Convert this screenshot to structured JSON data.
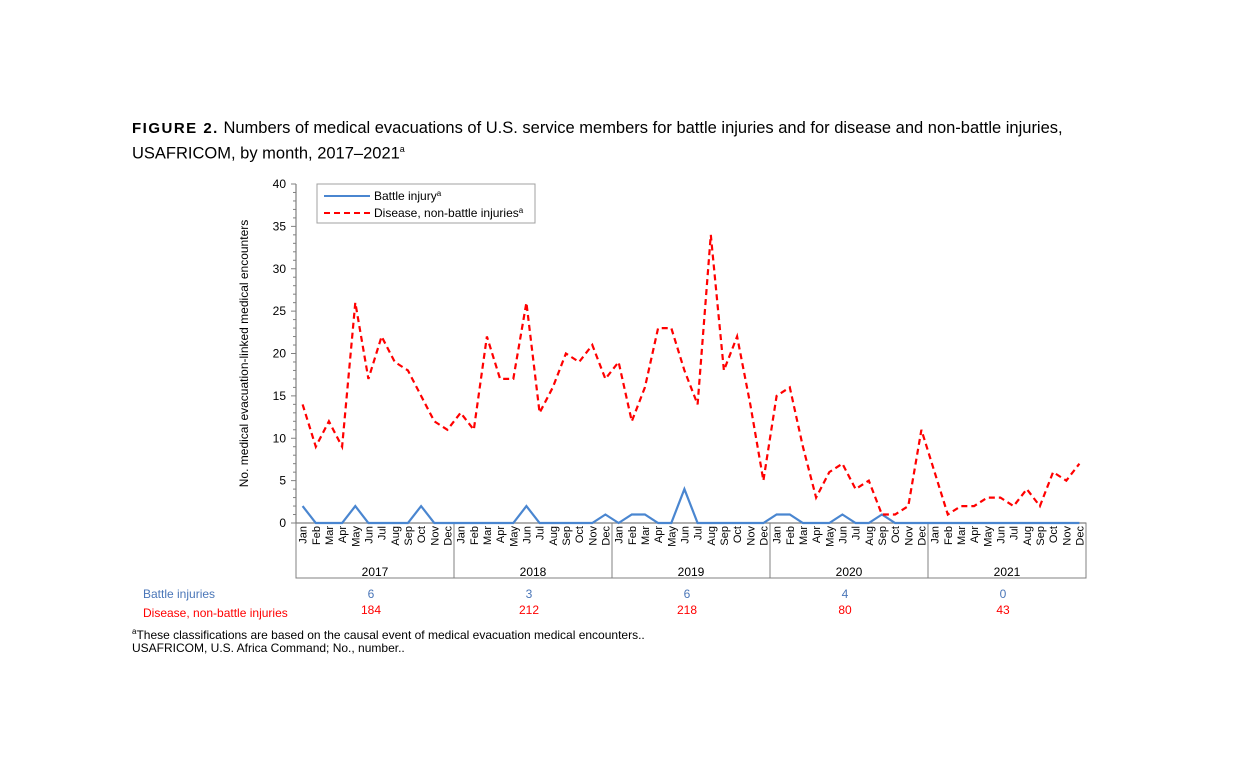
{
  "title": {
    "figure_label": "FIGURE 2.",
    "text": "Numbers of medical evacuations of U.S. service members for battle injuries and for disease and non-battle injuries, USAFRICOM, by month, 2017–2021",
    "superscript": "a"
  },
  "chart_data": {
    "type": "line",
    "ylabel": "No. medical evacuation-linked medical encounters",
    "ylim": [
      0,
      40
    ],
    "yticks": [
      0,
      5,
      10,
      15,
      20,
      25,
      30,
      35,
      40
    ],
    "months": [
      "Jan",
      "Feb",
      "Mar",
      "Apr",
      "May",
      "Jun",
      "Jul",
      "Aug",
      "Sep",
      "Oct",
      "Nov",
      "Dec"
    ],
    "years": [
      "2017",
      "2018",
      "2019",
      "2020",
      "2021"
    ],
    "legend_position": "top-left",
    "series": [
      {
        "name": "Battle injury",
        "superscript": "a",
        "color": "#4a86d0",
        "style": "solid",
        "values": [
          2,
          0,
          0,
          0,
          2,
          0,
          0,
          0,
          0,
          2,
          0,
          0,
          0,
          0,
          0,
          0,
          0,
          2,
          0,
          0,
          0,
          0,
          0,
          1,
          0,
          1,
          1,
          0,
          0,
          4,
          0,
          0,
          0,
          0,
          0,
          0,
          1,
          1,
          0,
          0,
          0,
          1,
          0,
          0,
          1,
          0,
          0,
          0,
          0,
          0,
          0,
          0,
          0,
          0,
          0,
          0,
          0,
          0,
          0,
          0
        ]
      },
      {
        "name": "Disease, non-battle injuries",
        "superscript": "a",
        "color": "#ff0000",
        "style": "dashed",
        "values": [
          14,
          9,
          12,
          9,
          26,
          17,
          22,
          19,
          18,
          15,
          12,
          11,
          13,
          11,
          22,
          17,
          17,
          26,
          13,
          16,
          20,
          19,
          21,
          17,
          19,
          12,
          16,
          23,
          23,
          18,
          14,
          34,
          18,
          22,
          14,
          5,
          15,
          16,
          9,
          3,
          6,
          7,
          4,
          5,
          1,
          1,
          2,
          11,
          6,
          1,
          2,
          2,
          3,
          3,
          2,
          4,
          2,
          6,
          5,
          7
        ]
      }
    ],
    "totals": {
      "battle_label": "Battle injuries",
      "disease_label": "Disease, non-battle injuries",
      "battle": [
        "6",
        "3",
        "6",
        "4",
        "0"
      ],
      "disease": [
        "184",
        "212",
        "218",
        "80",
        "43"
      ]
    }
  },
  "footnotes": {
    "a": "These classifications are based on the causal event of medical evacuation medical encounters..",
    "abbrev": "USAFRICOM, U.S. Africa Command; No., number.."
  }
}
